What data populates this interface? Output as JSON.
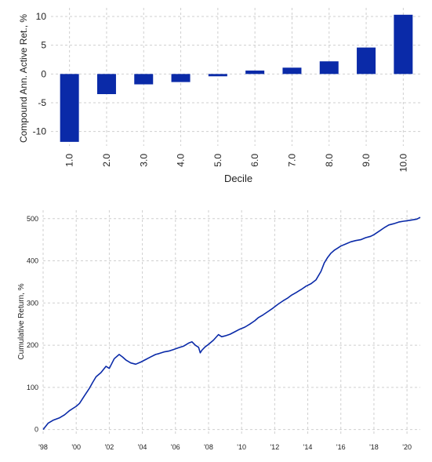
{
  "chart_data": [
    {
      "type": "bar",
      "title": "",
      "xlabel": "Decile",
      "ylabel": "Compound Ann. Active Ret., %",
      "categories": [
        "1.0",
        "2.0",
        "3.0",
        "4.0",
        "5.0",
        "6.0",
        "7.0",
        "8.0",
        "9.0",
        "10.0"
      ],
      "values": [
        -11.8,
        -3.5,
        -1.8,
        -1.4,
        -0.4,
        0.6,
        1.1,
        2.2,
        4.6,
        10.3
      ],
      "ylim": [
        -12.5,
        11.5
      ],
      "yticks": [
        "10",
        "5",
        "0",
        "-5",
        "-10"
      ],
      "grid": true,
      "color": "#0a2aa8"
    },
    {
      "type": "line",
      "title": "",
      "xlabel": "",
      "ylabel": "Cumulative Return, %",
      "xlim": [
        1998.0,
        2020.8
      ],
      "ylim": [
        -10,
        520
      ],
      "xticks": [
        "'98",
        "'00",
        "'02",
        "'04",
        "'06",
        "'08",
        "'10",
        "'12",
        "'14",
        "'16",
        "'18",
        "'20"
      ],
      "yticks": [
        "500",
        "400",
        "300",
        "200",
        "100",
        "0"
      ],
      "grid": true,
      "color": "#0a2aa8",
      "x": [
        1998.0,
        1998.3,
        1998.6,
        1999.0,
        1999.3,
        1999.6,
        2000.0,
        2000.2,
        2000.5,
        2000.8,
        2001.0,
        2001.2,
        2001.5,
        2001.8,
        2002.0,
        2002.3,
        2002.6,
        2002.8,
        2003.0,
        2003.3,
        2003.6,
        2003.9,
        2004.2,
        2004.5,
        2004.8,
        2005.0,
        2005.3,
        2005.6,
        2005.9,
        2006.2,
        2006.5,
        2006.8,
        2007.0,
        2007.2,
        2007.4,
        2007.5,
        2007.6,
        2007.8,
        2008.0,
        2008.3,
        2008.6,
        2008.8,
        2009.0,
        2009.3,
        2009.6,
        2009.9,
        2010.2,
        2010.5,
        2010.8,
        2011.0,
        2011.3,
        2011.6,
        2011.9,
        2012.2,
        2012.5,
        2012.8,
        2013.0,
        2013.3,
        2013.6,
        2013.9,
        2014.2,
        2014.5,
        2014.8,
        2015.0,
        2015.2,
        2015.4,
        2015.6,
        2015.8,
        2016.0,
        2016.3,
        2016.6,
        2016.9,
        2017.2,
        2017.5,
        2017.8,
        2018.0,
        2018.3,
        2018.6,
        2018.9,
        2019.2,
        2019.5,
        2019.8,
        2020.0,
        2020.3,
        2020.6,
        2020.8
      ],
      "y": [
        0,
        15,
        22,
        28,
        35,
        45,
        55,
        62,
        80,
        98,
        112,
        125,
        135,
        150,
        145,
        168,
        178,
        172,
        165,
        158,
        155,
        160,
        166,
        172,
        178,
        180,
        184,
        186,
        190,
        194,
        198,
        205,
        208,
        200,
        195,
        182,
        188,
        196,
        202,
        212,
        225,
        220,
        222,
        226,
        232,
        238,
        243,
        250,
        258,
        265,
        272,
        280,
        288,
        297,
        305,
        312,
        318,
        325,
        332,
        340,
        346,
        355,
        375,
        395,
        408,
        418,
        425,
        430,
        435,
        440,
        445,
        448,
        450,
        455,
        458,
        462,
        470,
        478,
        485,
        488,
        492,
        494,
        495,
        497,
        499,
        503
      ]
    }
  ]
}
